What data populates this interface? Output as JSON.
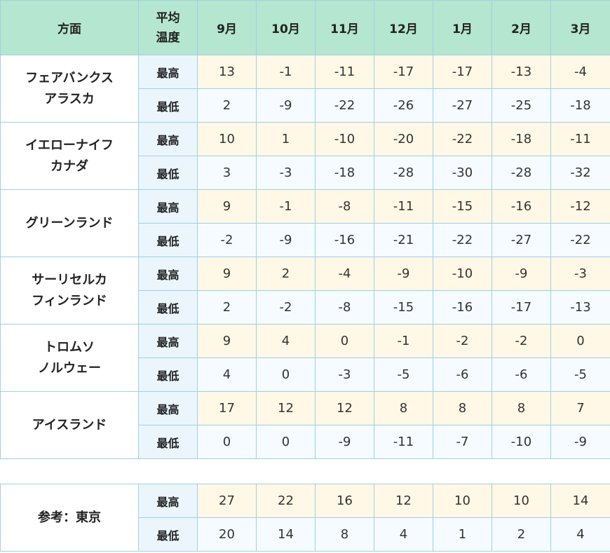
{
  "header": {
    "region": "方面",
    "temp_line1": "平均",
    "temp_line2": "温度",
    "months": [
      "9月",
      "10月",
      "11月",
      "12月",
      "1月",
      "2月",
      "3月"
    ]
  },
  "labels": {
    "high": "最高",
    "low": "最低"
  },
  "regions": [
    {
      "line1": "フェアバンクス",
      "line2": "アラスカ",
      "high": [
        "13",
        "-1",
        "-11",
        "-17",
        "-17",
        "-13",
        "-4"
      ],
      "low": [
        "2",
        "-9",
        "-22",
        "-26",
        "-27",
        "-25",
        "-18"
      ]
    },
    {
      "line1": "イエローナイフ",
      "line2": "カナダ",
      "high": [
        "10",
        "1",
        "-10",
        "-20",
        "-22",
        "-18",
        "-11"
      ],
      "low": [
        "3",
        "-3",
        "-18",
        "-28",
        "-30",
        "-28",
        "-32"
      ]
    },
    {
      "line1": "グリーンランド",
      "line2": "",
      "high": [
        "9",
        "-1",
        "-8",
        "-11",
        "-15",
        "-16",
        "-12"
      ],
      "low": [
        "-2",
        "-9",
        "-16",
        "-21",
        "-22",
        "-27",
        "-22"
      ]
    },
    {
      "line1": "サーリセルカ",
      "line2": "フィンランド",
      "high": [
        "9",
        "2",
        "-4",
        "-9",
        "-10",
        "-9",
        "-3"
      ],
      "low": [
        "2",
        "-2",
        "-8",
        "-15",
        "-16",
        "-17",
        "-13"
      ]
    },
    {
      "line1": "トロムソ",
      "line2": "ノルウェー",
      "high": [
        "9",
        "4",
        "0",
        "-1",
        "-2",
        "-2",
        "0"
      ],
      "low": [
        "4",
        "0",
        "-3",
        "-5",
        "-6",
        "-6",
        "-5"
      ]
    },
    {
      "line1": "アイスランド",
      "line2": "",
      "high": [
        "17",
        "12",
        "12",
        "8",
        "8",
        "8",
        "7"
      ],
      "low": [
        "0",
        "0",
        "-9",
        "-11",
        "-7",
        "-10",
        "-9"
      ]
    }
  ],
  "reference": {
    "label": "参考：東京",
    "high": [
      "27",
      "22",
      "16",
      "12",
      "10",
      "10",
      "14"
    ],
    "low": [
      "20",
      "14",
      "8",
      "4",
      "1",
      "2",
      "4"
    ]
  }
}
